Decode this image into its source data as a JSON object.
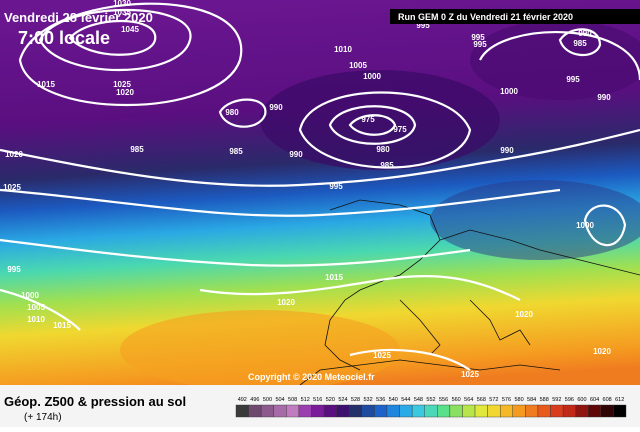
{
  "header": {
    "date": "Vendredi 28 février 2020",
    "time": "7:00 locale",
    "run": "Run GEM 0 Z du Vendredi 21 février 2020"
  },
  "isobar_labels": [
    "1030",
    "1035",
    "1045",
    "1015",
    "1025",
    "1020",
    "1010",
    "1005",
    "1000",
    "995",
    "995",
    "995",
    "985",
    "985",
    "980",
    "990",
    "985",
    "990",
    "975",
    "975",
    "980",
    "985",
    "995",
    "1000",
    "990",
    "990",
    "1020",
    "1025",
    "995",
    "1000",
    "1005",
    "1010",
    "1015",
    "1015",
    "1020",
    "1020",
    "1025",
    "1025",
    "1020",
    "1000",
    "1000",
    "990",
    "995"
  ],
  "copyright": "Copyright © 2020 Meteociel.fr",
  "footer": {
    "title": "Géop. Z500 & pression au sol",
    "lead": "(+ 174h)"
  },
  "legend": {
    "labels": [
      492,
      496,
      500,
      504,
      508,
      512,
      516,
      520,
      524,
      528,
      532,
      536,
      540,
      544,
      548,
      552,
      556,
      560,
      564,
      568,
      572,
      576,
      580,
      584,
      588,
      592,
      596,
      600,
      604,
      608,
      612
    ],
    "colors": [
      "#3a3a3a",
      "#6e4b6e",
      "#8c5a8c",
      "#a76ba7",
      "#c07cc0",
      "#9b3fb0",
      "#7a1c9a",
      "#5a0f80",
      "#3d1070",
      "#23306a",
      "#1e4aa0",
      "#1c62c8",
      "#1f86e0",
      "#2aaae6",
      "#3cc9e0",
      "#4ad8b8",
      "#5ae08a",
      "#8ae060",
      "#b8e64a",
      "#e0e83c",
      "#f0d830",
      "#f5b828",
      "#f59a20",
      "#f07c20",
      "#e85a1c",
      "#d83c1c",
      "#c02818",
      "#901410",
      "#600808",
      "#300404",
      "#000000"
    ]
  }
}
